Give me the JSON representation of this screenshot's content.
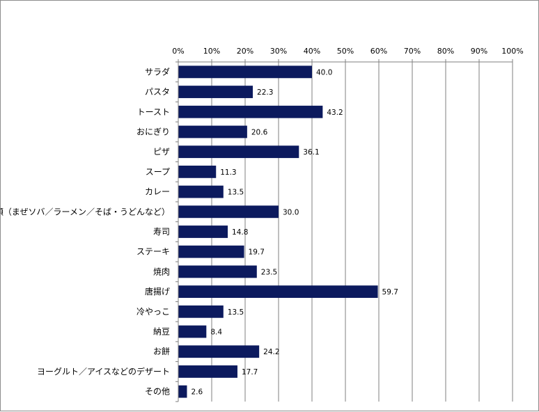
{
  "chart_data": {
    "type": "bar",
    "orientation": "horizontal",
    "title": "",
    "xlabel": "",
    "ylabel": "",
    "xlim": [
      0,
      100
    ],
    "tick_values": [
      0,
      10,
      20,
      30,
      40,
      50,
      60,
      70,
      80,
      90,
      100
    ],
    "tick_labels": [
      "0%",
      "10%",
      "20%",
      "30%",
      "40%",
      "50%",
      "60%",
      "70%",
      "80%",
      "90%",
      "100%"
    ],
    "tick_position": "top",
    "grid": true,
    "legend": "none",
    "bar_color": "#0c1a5e",
    "categories": [
      "サラダ",
      "パスタ",
      "トースト",
      "おにぎり",
      "ピザ",
      "スープ",
      "カレー",
      "麺類（まぜソバ／ラーメン／そば・うどんなど）",
      "寿司",
      "ステーキ",
      "焼肉",
      "唐揚げ",
      "冷やっこ",
      "納豆",
      "お餅",
      "ヨーグルト／アイスなどのデザート",
      "その他"
    ],
    "values": [
      40.0,
      22.3,
      43.2,
      20.6,
      36.1,
      11.3,
      13.5,
      30.0,
      14.8,
      19.7,
      23.5,
      59.7,
      13.5,
      8.4,
      24.2,
      17.7,
      2.6
    ],
    "value_labels": [
      "40.0",
      "22.3",
      "43.2",
      "20.6",
      "36.1",
      "11.3",
      "13.5",
      "30.0",
      "14.8",
      "19.7",
      "23.5",
      "59.7",
      "13.5",
      "8.4",
      "24.2",
      "17.7",
      "2.6"
    ]
  }
}
